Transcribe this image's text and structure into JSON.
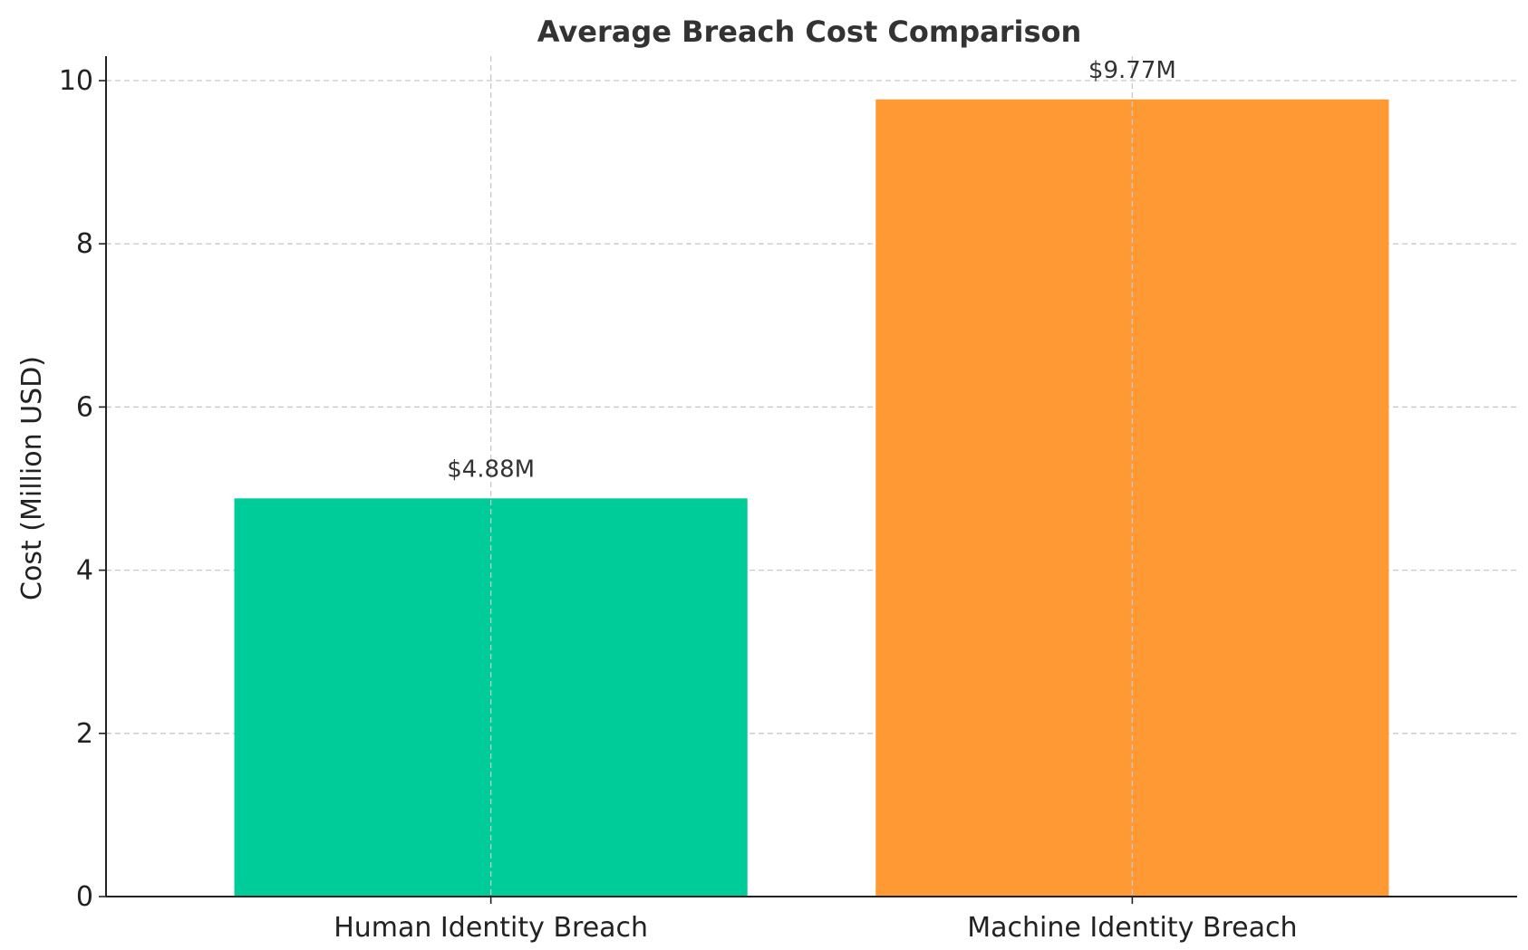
{
  "chart_data": {
    "type": "bar",
    "title": "Average Breach Cost Comparison",
    "xlabel": "",
    "ylabel": "Cost (Million USD)",
    "categories": [
      "Human Identity Breach",
      "Machine Identity Breach"
    ],
    "values": [
      4.88,
      9.77
    ],
    "data_labels": [
      "$4.88M",
      "$9.77M"
    ],
    "colors": [
      "#00cc99",
      "#ff9933"
    ],
    "ylim": [
      0,
      10.3
    ],
    "yticks": [
      0,
      2,
      4,
      6,
      8,
      10
    ],
    "grid": true
  }
}
